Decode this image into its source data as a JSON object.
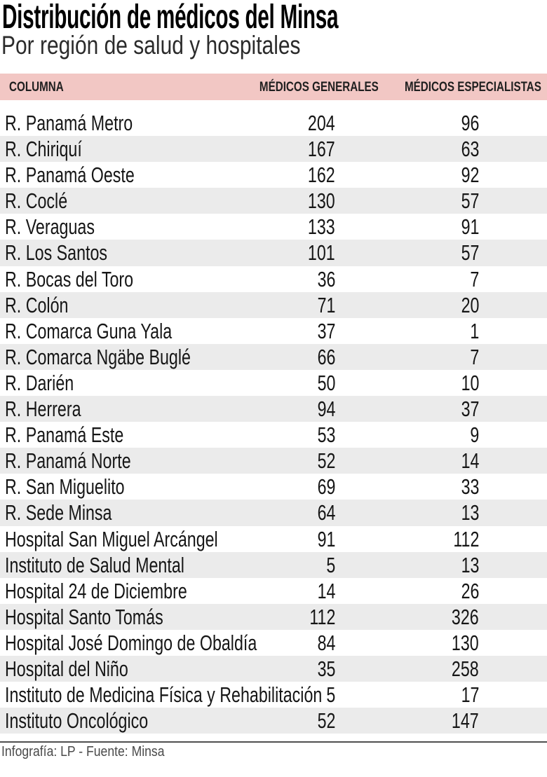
{
  "header": {
    "title": "Distribución de médicos del Minsa",
    "subtitle": "Por región de salud y hospitales"
  },
  "table": {
    "columns": [
      "COLUMNA",
      "MÉDICOS GENERALES",
      "MÉDICOS ESPECIALISTAS"
    ],
    "rows": [
      {
        "label": "R. Panamá Metro",
        "generales": 204,
        "especialistas": 96
      },
      {
        "label": "R. Chiriquí",
        "generales": 167,
        "especialistas": 63
      },
      {
        "label": "R. Panamá Oeste",
        "generales": 162,
        "especialistas": 92
      },
      {
        "label": "R. Coclé",
        "generales": 130,
        "especialistas": 57
      },
      {
        "label": "R. Veraguas",
        "generales": 133,
        "especialistas": 91
      },
      {
        "label": "R. Los Santos",
        "generales": 101,
        "especialistas": 57
      },
      {
        "label": "R. Bocas del Toro",
        "generales": 36,
        "especialistas": 7
      },
      {
        "label": "R. Colón",
        "generales": 71,
        "especialistas": 20
      },
      {
        "label": "R. Comarca Guna Yala",
        "generales": 37,
        "especialistas": 1
      },
      {
        "label": "R. Comarca Ngäbe Buglé",
        "generales": 66,
        "especialistas": 7
      },
      {
        "label": "R. Darién",
        "generales": 50,
        "especialistas": 10
      },
      {
        "label": "R. Herrera",
        "generales": 94,
        "especialistas": 37
      },
      {
        "label": "R. Panamá Este",
        "generales": 53,
        "especialistas": 9
      },
      {
        "label": "R. Panamá Norte",
        "generales": 52,
        "especialistas": 14
      },
      {
        "label": "R. San Miguelito",
        "generales": 69,
        "especialistas": 33
      },
      {
        "label": "R. Sede Minsa",
        "generales": 64,
        "especialistas": 13
      },
      {
        "label": "Hospital San Miguel Arcángel",
        "generales": 91,
        "especialistas": 112
      },
      {
        "label": "Instituto de Salud Mental",
        "generales": 5,
        "especialistas": 13
      },
      {
        "label": "Hospital 24 de Diciembre",
        "generales": 14,
        "especialistas": 26
      },
      {
        "label": "Hospital Santo Tomás",
        "generales": 112,
        "especialistas": 326
      },
      {
        "label": "Hospital José Domingo de Obaldía",
        "generales": 84,
        "especialistas": 130
      },
      {
        "label": "Hospital del Niño",
        "generales": 35,
        "especialistas": 258
      },
      {
        "label": "Instituto de Medicina Física y Rehabilitación",
        "generales": 5,
        "especialistas": 17
      },
      {
        "label": "Instituto Oncológico",
        "generales": 52,
        "especialistas": 147
      }
    ]
  },
  "footer": {
    "credit": "Infografía: LP - Fuente: Minsa"
  },
  "colors": {
    "header_band": "#f2c7c4",
    "row_stripe": "#ebebeb",
    "title_text": "#000000",
    "body_text": "#161616",
    "footer_text": "#4a4a4a",
    "divider": "#4f4f4f"
  },
  "chart_data": {
    "type": "table",
    "title": "Distribución de médicos del Minsa",
    "subtitle": "Por región de salud y hospitales",
    "columns": [
      "COLUMNA",
      "MÉDICOS GENERALES",
      "MÉDICOS ESPECIALISTAS"
    ],
    "categories": [
      "R. Panamá Metro",
      "R. Chiriquí",
      "R. Panamá Oeste",
      "R. Coclé",
      "R. Veraguas",
      "R. Los Santos",
      "R. Bocas del Toro",
      "R. Colón",
      "R. Comarca Guna Yala",
      "R. Comarca Ngäbe Buglé",
      "R. Darién",
      "R. Herrera",
      "R. Panamá Este",
      "R. Panamá Norte",
      "R. San Miguelito",
      "R. Sede Minsa",
      "Hospital San Miguel Arcángel",
      "Instituto de Salud Mental",
      "Hospital 24 de Diciembre",
      "Hospital Santo Tomás",
      "Hospital José Domingo de Obaldía",
      "Hospital del Niño",
      "Instituto de Medicina Física y Rehabilitación",
      "Instituto Oncológico"
    ],
    "series": [
      {
        "name": "MÉDICOS GENERALES",
        "values": [
          204,
          167,
          162,
          130,
          133,
          101,
          36,
          71,
          37,
          66,
          50,
          94,
          53,
          52,
          69,
          64,
          91,
          5,
          14,
          112,
          84,
          35,
          5,
          52
        ]
      },
      {
        "name": "MÉDICOS ESPECIALISTAS",
        "values": [
          96,
          63,
          92,
          57,
          91,
          57,
          7,
          20,
          1,
          7,
          10,
          37,
          9,
          14,
          33,
          13,
          112,
          13,
          26,
          326,
          130,
          258,
          17,
          147
        ]
      }
    ],
    "source": "Infografía: LP - Fuente: Minsa",
    "layout": {
      "zebra_striping": true,
      "value_alignment": "right",
      "legend_position": "header-row"
    }
  }
}
